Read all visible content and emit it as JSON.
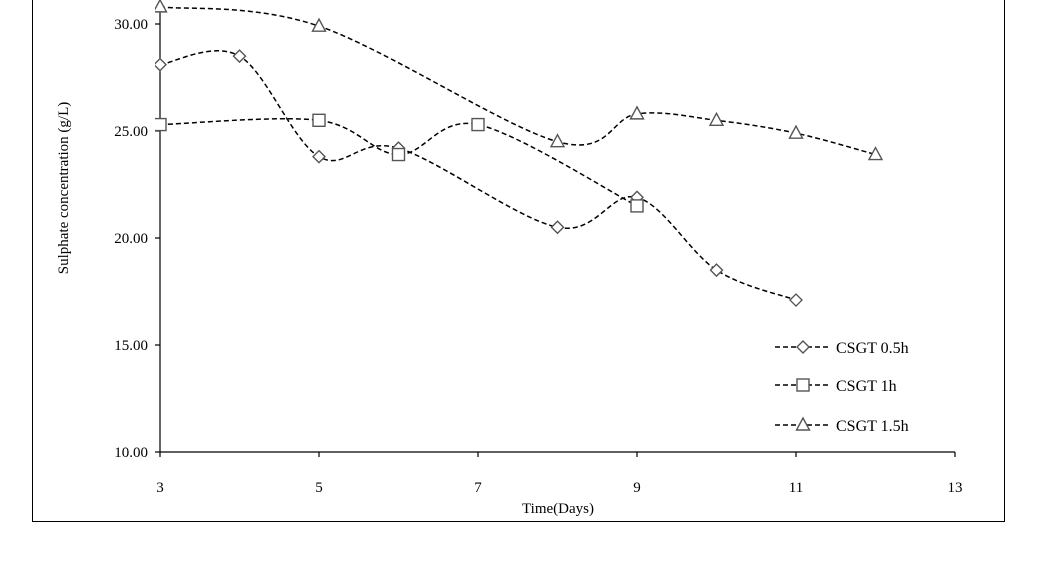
{
  "chart_data": {
    "type": "line",
    "title": "",
    "xlabel": "Time(Days)",
    "ylabel": "Sulphate concentration (g/L)",
    "xlim": [
      3,
      13
    ],
    "ylim": [
      10,
      32
    ],
    "x_ticks": [
      3,
      5,
      7,
      9,
      11,
      13
    ],
    "y_ticks": [
      10,
      15,
      20,
      25,
      30
    ],
    "x_tick_labels": [
      "3",
      "5",
      "7",
      "9",
      "11",
      "13"
    ],
    "y_tick_labels": [
      "10.00",
      "15.00",
      "20.00",
      "25.00",
      "30.00"
    ],
    "grid": false,
    "legend_position": "bottom-right",
    "series": [
      {
        "name": "CSGT 0.5h",
        "marker": "diamond",
        "x": [
          3,
          4,
          5,
          6,
          8,
          9,
          10,
          11
        ],
        "y": [
          28.1,
          28.5,
          23.8,
          24.2,
          20.5,
          21.9,
          18.5,
          17.1
        ]
      },
      {
        "name": "CSGT 1h",
        "marker": "square",
        "x": [
          3,
          5,
          6,
          7,
          9
        ],
        "y": [
          25.3,
          25.5,
          23.9,
          25.3,
          21.5
        ]
      },
      {
        "name": "CSGT 1.5h",
        "marker": "triangle",
        "x": [
          3,
          5,
          8,
          9,
          10,
          11,
          12
        ],
        "y": [
          30.8,
          29.9,
          24.5,
          25.8,
          25.5,
          24.9,
          23.9
        ]
      }
    ]
  }
}
